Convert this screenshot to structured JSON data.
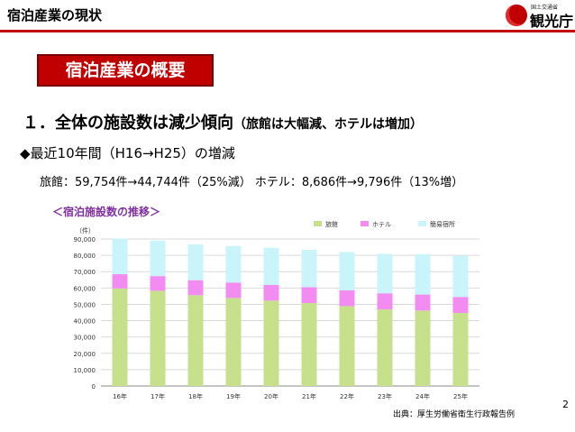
{
  "header": {
    "title": "宿泊産業の現状",
    "logo_small_text": "国土交通省",
    "logo_name": "観光庁"
  },
  "section_label": "宿泊産業の概要",
  "heading": {
    "main": "１．全体の施設数は減少傾向",
    "sub": "（旅館は大幅減、ホテルは増加）"
  },
  "bullet": "◆最近10年間（H16→H25）の増減",
  "stats": "旅館：59,754件→44,744件（25%減） ホテル：8,686件→9,796件（13%増）",
  "chart_title": "＜宿泊施設数の推移＞",
  "chart_data": {
    "type": "bar",
    "stacked": true,
    "categories": [
      "16年",
      "17年",
      "18年",
      "19年",
      "20年",
      "21年",
      "22年",
      "23年",
      "24年",
      "25年"
    ],
    "series": [
      {
        "name": "旅館",
        "color": "#c6e08c",
        "values": [
          59754,
          58300,
          55600,
          53900,
          52300,
          50800,
          48900,
          46900,
          46200,
          44744
        ]
      },
      {
        "name": "ホテル",
        "color": "#f28cf0",
        "values": [
          8686,
          8990,
          9180,
          9440,
          9600,
          9690,
          9710,
          9860,
          9800,
          9796
        ]
      },
      {
        "name": "簡易宿所",
        "color": "#c9f4f9",
        "values": [
          21800,
          21700,
          21900,
          22400,
          22700,
          22900,
          23400,
          24100,
          24700,
          25100
        ]
      }
    ],
    "y_unit": "（件）",
    "ylim": [
      0,
      90000
    ],
    "yticks": [
      0,
      10000,
      20000,
      30000,
      40000,
      50000,
      60000,
      70000,
      80000,
      90000
    ],
    "ytick_labels": [
      "0",
      "10,000",
      "20,000",
      "30,000",
      "40,000",
      "50,000",
      "60,000",
      "70,000",
      "80,000",
      "90,000"
    ],
    "grid": true,
    "legend_position": "top-right"
  },
  "source": "出典：厚生労働省衛生行政報告例",
  "page_number": "2"
}
